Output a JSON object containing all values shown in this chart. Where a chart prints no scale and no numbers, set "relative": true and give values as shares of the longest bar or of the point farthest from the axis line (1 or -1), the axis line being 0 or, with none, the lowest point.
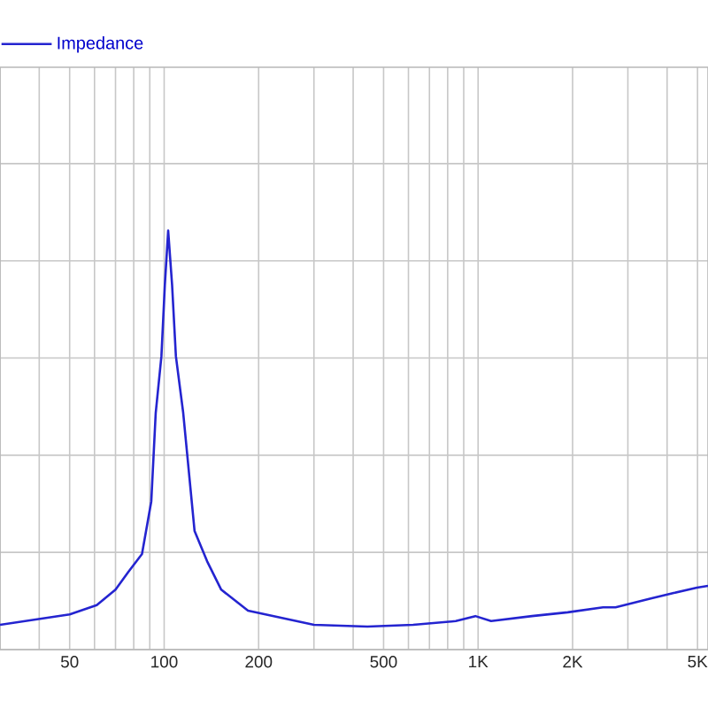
{
  "chart_data": {
    "type": "line",
    "relative": true,
    "log": "x",
    "grid": true,
    "legend": "top left",
    "tick_labels": "x",
    "xlim": [
      30,
      5400
    ],
    "xticks": [
      {
        "value": 30,
        "label": null
      },
      {
        "value": 40,
        "label": null
      },
      50,
      {
        "value": 60,
        "label": null
      },
      {
        "value": 70,
        "label": null
      },
      {
        "value": 80,
        "label": null
      },
      {
        "value": 90,
        "label": null
      },
      100,
      200,
      {
        "value": 300,
        "label": null
      },
      {
        "value": 400,
        "label": null
      },
      500,
      {
        "value": 600,
        "label": null
      },
      {
        "value": 700,
        "label": null
      },
      {
        "value": 800,
        "label": null
      },
      {
        "value": 900,
        "label": null
      },
      {
        "value": 1000,
        "label": "1K"
      },
      {
        "value": 2000,
        "label": "2K"
      },
      {
        "value": 3000,
        "label": null
      },
      {
        "value": 4000,
        "label": null
      },
      {
        "value": 5000,
        "label": "5K"
      }
    ],
    "series": [
      {
        "name": "Impedance",
        "color": "#2424d0",
        "x": [
          30,
          50,
          61,
          70,
          77,
          85,
          91,
          94,
          98,
          100.5,
          103,
          106,
          109,
          115,
          125,
          137,
          152,
          185,
          300,
          444,
          621,
          849,
          980,
          1100,
          1485,
          1930,
          2500,
          2740,
          3550,
          4200,
          4980,
          5400
        ],
        "values": [
          0.059,
          0.084,
          0.106,
          0.143,
          0.186,
          0.228,
          0.354,
          0.565,
          0.7,
          0.87,
          1,
          0.87,
          0.7,
          0.565,
          0.283,
          0.211,
          0.143,
          0.093,
          0.059,
          0.055,
          0.059,
          0.068,
          0.08,
          0.068,
          0.08,
          0.089,
          0.101,
          0.101,
          0.122,
          0.135,
          0.148,
          0.152
        ]
      }
    ]
  }
}
